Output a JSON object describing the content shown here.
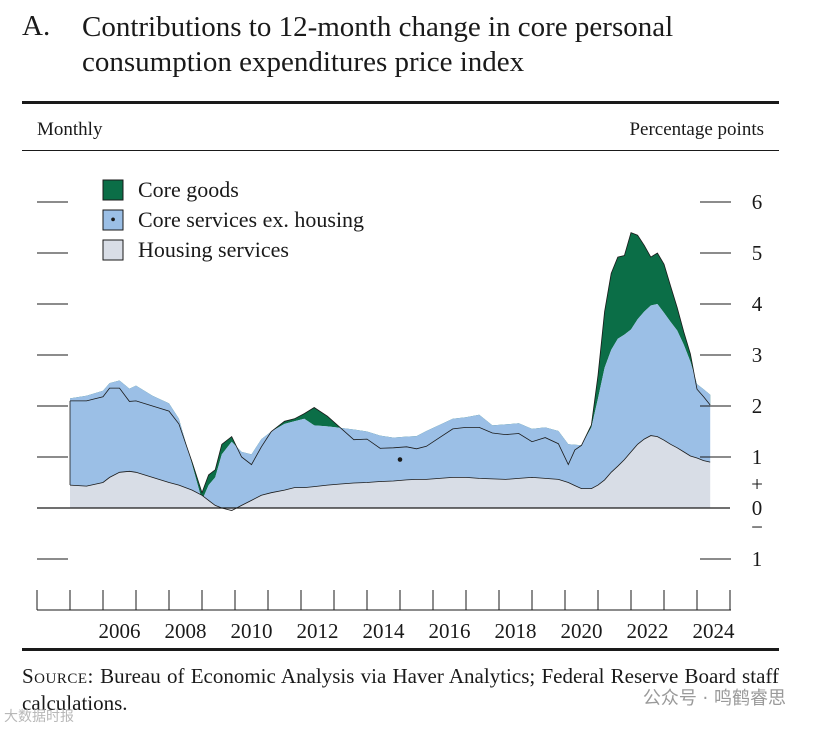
{
  "header": {
    "panel_letter": "A.",
    "title": "Contributions to 12-month change in core personal consumption expenditures price index"
  },
  "frequency_label": "Monthly",
  "units_label": "Percentage points",
  "source": {
    "label": "Source:",
    "text": "Bureau of Economic Analysis via Haver Analytics; Federal Reserve Board staff calculations."
  },
  "watermark": {
    "main": "公众号 · 鸣鹤睿思",
    "left": "大数据时报"
  },
  "colors": {
    "core_goods": "#0b6e47",
    "core_services": "#9bbfe6",
    "housing": "#d8dde6",
    "outline": "#1a1a1a"
  },
  "chart_data": {
    "type": "area",
    "stacking": "stacked (core goods stacked above/below the services total)",
    "title": "Contributions to 12-month change in core personal consumption expenditures price index",
    "xlabel": "",
    "ylabel": "Percentage points",
    "ylim": [
      -1,
      6
    ],
    "xlim": [
      2004,
      2025
    ],
    "y_ticks": [
      {
        "value": 6,
        "label": "6"
      },
      {
        "value": 5,
        "label": "5"
      },
      {
        "value": 4,
        "label": "4"
      },
      {
        "value": 3,
        "label": "3"
      },
      {
        "value": 2,
        "label": "2"
      },
      {
        "value": 1,
        "label": "1"
      },
      {
        "value": 0,
        "label": "0"
      },
      {
        "value": -1,
        "label": "1"
      }
    ],
    "zero_marks": {
      "plus": "+",
      "minus": "−"
    },
    "x_tick_labels": [
      "2006",
      "2008",
      "2010",
      "2012",
      "2014",
      "2016",
      "2018",
      "2020",
      "2022",
      "2024"
    ],
    "x_label_positions": [
      2006,
      2008,
      2010,
      2012,
      2014,
      2016,
      2018,
      2020,
      2022,
      2024
    ],
    "legend": [
      {
        "name": "Core goods",
        "color_key": "core_goods",
        "marker": ""
      },
      {
        "name": "Core services ex. housing",
        "color_key": "core_services",
        "marker": "•"
      },
      {
        "name": "Housing services",
        "color_key": "housing",
        "marker": ""
      }
    ],
    "annotation_dot": {
      "x": 2015.0,
      "y": 0.95
    },
    "x": [
      2005.0,
      2005.5,
      2006.0,
      2006.2,
      2006.5,
      2006.8,
      2007.0,
      2007.5,
      2008.0,
      2008.3,
      2008.7,
      2009.0,
      2009.2,
      2009.4,
      2009.6,
      2009.9,
      2010.2,
      2010.5,
      2010.8,
      2011.1,
      2011.5,
      2011.8,
      2012.1,
      2012.4,
      2012.8,
      2013.2,
      2013.6,
      2014.0,
      2014.4,
      2014.8,
      2015.2,
      2015.5,
      2015.8,
      2016.2,
      2016.6,
      2017.0,
      2017.4,
      2017.8,
      2018.2,
      2018.6,
      2019.0,
      2019.4,
      2019.8,
      2020.1,
      2020.3,
      2020.5,
      2020.8,
      2021.0,
      2021.2,
      2021.4,
      2021.6,
      2021.8,
      2022.0,
      2022.2,
      2022.4,
      2022.6,
      2022.8,
      2023.0,
      2023.2,
      2023.4,
      2023.6,
      2023.8,
      2024.0,
      2024.2,
      2024.4
    ],
    "series": [
      {
        "name": "Housing services",
        "values": [
          0.45,
          0.43,
          0.5,
          0.6,
          0.7,
          0.72,
          0.7,
          0.6,
          0.5,
          0.45,
          0.35,
          0.25,
          0.15,
          0.05,
          0.0,
          -0.05,
          0.05,
          0.15,
          0.25,
          0.3,
          0.35,
          0.4,
          0.4,
          0.42,
          0.45,
          0.47,
          0.49,
          0.5,
          0.52,
          0.53,
          0.55,
          0.56,
          0.56,
          0.58,
          0.6,
          0.6,
          0.58,
          0.57,
          0.56,
          0.58,
          0.6,
          0.58,
          0.56,
          0.5,
          0.44,
          0.38,
          0.38,
          0.45,
          0.55,
          0.7,
          0.82,
          0.95,
          1.1,
          1.25,
          1.35,
          1.42,
          1.4,
          1.33,
          1.25,
          1.18,
          1.1,
          1.02,
          0.98,
          0.93,
          0.9
        ]
      },
      {
        "name": "Core services ex. housing",
        "values": [
          1.7,
          1.77,
          1.8,
          1.85,
          1.8,
          1.62,
          1.7,
          1.6,
          1.55,
          1.3,
          0.5,
          -0.1,
          0.3,
          0.55,
          1.05,
          1.35,
          1.05,
          0.9,
          1.1,
          1.2,
          1.3,
          1.3,
          1.35,
          1.2,
          1.15,
          1.1,
          1.05,
          1.0,
          0.9,
          0.85,
          0.85,
          0.85,
          0.95,
          1.05,
          1.15,
          1.18,
          1.25,
          1.05,
          1.08,
          1.08,
          0.95,
          1.0,
          0.95,
          0.75,
          0.8,
          0.85,
          1.2,
          1.7,
          2.2,
          2.4,
          2.5,
          2.45,
          2.4,
          2.45,
          2.5,
          2.55,
          2.6,
          2.5,
          2.4,
          2.3,
          2.1,
          1.85,
          1.45,
          1.4,
          1.32
        ]
      },
      {
        "name": "Core goods",
        "values": [
          -0.05,
          -0.1,
          -0.12,
          -0.1,
          -0.15,
          -0.25,
          -0.3,
          -0.2,
          -0.15,
          -0.1,
          0.05,
          0.15,
          0.2,
          0.15,
          0.2,
          0.1,
          -0.1,
          -0.2,
          -0.15,
          0.0,
          0.05,
          0.05,
          0.1,
          0.35,
          0.2,
          0.0,
          -0.2,
          -0.15,
          -0.25,
          -0.2,
          -0.2,
          -0.25,
          -0.3,
          -0.25,
          -0.2,
          -0.2,
          -0.25,
          -0.15,
          -0.2,
          -0.2,
          -0.25,
          -0.2,
          -0.25,
          -0.4,
          -0.1,
          0.0,
          0.05,
          0.45,
          1.1,
          1.5,
          1.6,
          1.55,
          1.9,
          1.65,
          1.3,
          0.95,
          1.0,
          0.95,
          0.7,
          0.45,
          0.25,
          0.15,
          -0.1,
          -0.15,
          -0.2
        ]
      }
    ]
  }
}
